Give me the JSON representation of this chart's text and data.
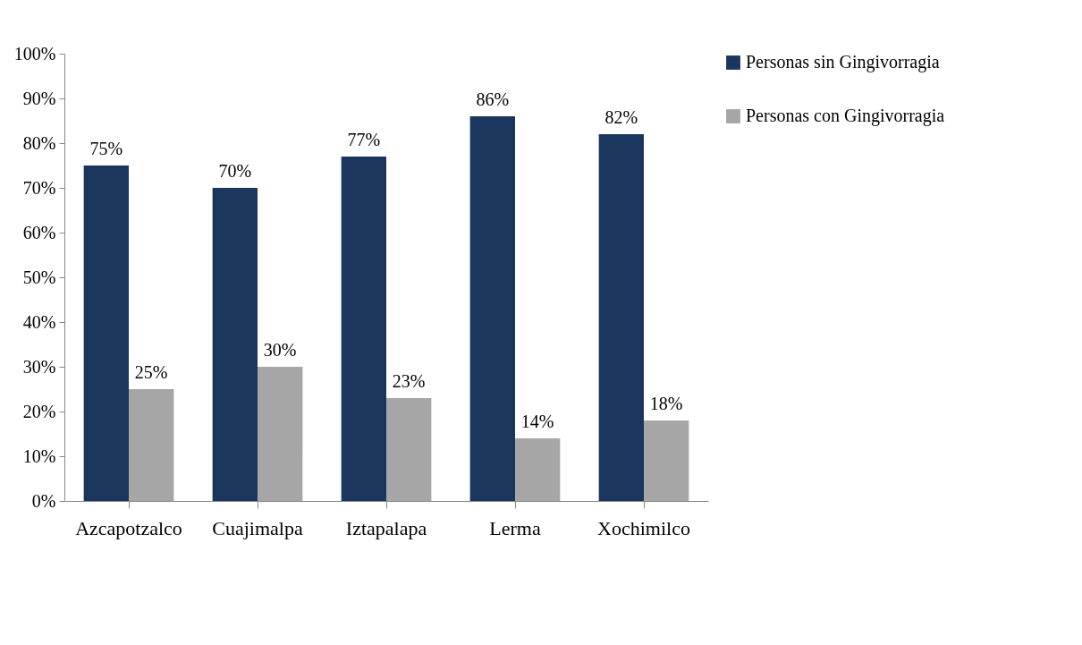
{
  "chart_data": {
    "type": "bar",
    "categories": [
      "Azcapotzalco",
      "Cuajimalpa",
      "Iztapalapa",
      "Lerma",
      "Xochimilco"
    ],
    "series": [
      {
        "name": "Personas sin Gingivorragia",
        "color": "#1b365d",
        "values": [
          75,
          70,
          77,
          86,
          82
        ],
        "value_labels": [
          "75%",
          "70%",
          "77%",
          "86%",
          "82%"
        ]
      },
      {
        "name": "Personas con Gingivorragia",
        "color": "#a6a6a6",
        "values": [
          25,
          30,
          23,
          14,
          18
        ],
        "value_labels": [
          "25%",
          "30%",
          "23%",
          "14%",
          "18%"
        ]
      }
    ],
    "ylim": [
      0,
      100
    ],
    "yticks": [
      {
        "value": 0,
        "label": "0%"
      },
      {
        "value": 10,
        "label": "10%"
      },
      {
        "value": 20,
        "label": "20%"
      },
      {
        "value": 30,
        "label": "30%"
      },
      {
        "value": 40,
        "label": "40%"
      },
      {
        "value": 50,
        "label": "50%"
      },
      {
        "value": 60,
        "label": "60%"
      },
      {
        "value": 70,
        "label": "70%"
      },
      {
        "value": 80,
        "label": "80%"
      },
      {
        "value": 90,
        "label": "90%"
      },
      {
        "value": 100,
        "label": "100%"
      }
    ],
    "grid": false,
    "legend": "right"
  }
}
